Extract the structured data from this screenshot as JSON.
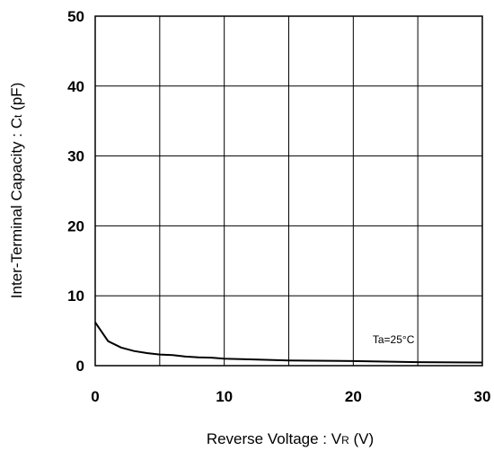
{
  "chart_data": {
    "type": "line",
    "title": "",
    "xlabel": {
      "main": "Reverse Voltage : V",
      "subscript": "R",
      "unit": " (V)"
    },
    "ylabel": {
      "main": "Inter-Terminal Capacity : C",
      "subscript": "t",
      "unit": " (pF)"
    },
    "xlim": [
      0,
      30
    ],
    "ylim": [
      0,
      50
    ],
    "xticks": [
      0,
      10,
      20,
      30
    ],
    "yticks": [
      0,
      10,
      20,
      30,
      40,
      50
    ],
    "x_gridlines": [
      0,
      5,
      10,
      15,
      20,
      25,
      30
    ],
    "y_gridlines": [
      0,
      10,
      20,
      30,
      40,
      50
    ],
    "grid": true,
    "annotation": {
      "text": "Ta=25°C",
      "x": 21.5,
      "y": 3.2
    },
    "series": [
      {
        "x": [
          0,
          1,
          2,
          3,
          4,
          5,
          6,
          7,
          8,
          9,
          10,
          12,
          15,
          20,
          25,
          30
        ],
        "values": [
          6.2,
          3.5,
          2.6,
          2.1,
          1.8,
          1.6,
          1.5,
          1.3,
          1.2,
          1.15,
          1.0,
          0.9,
          0.75,
          0.65,
          0.5,
          0.45
        ]
      }
    ]
  }
}
